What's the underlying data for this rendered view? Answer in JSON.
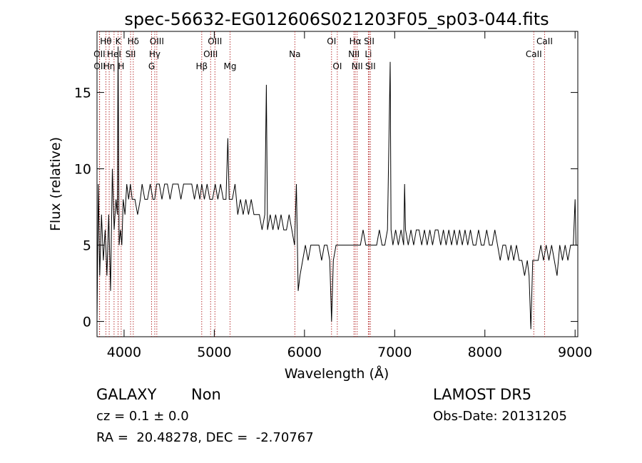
{
  "title": "spec-56632-EG012606S021203F05_sp03-044.fits",
  "footer": {
    "class_label": "GALAXY",
    "subclass_label": "Non",
    "cz_text": "cz = 0.1 ± 0.0",
    "coords_text": "RA =  20.48278, DEC =  -2.70767",
    "survey": "LAMOST DR5",
    "obs_date_text": "Obs-Date: 20131205"
  },
  "colors": {
    "axis": "#000000",
    "spectrum": "#000000",
    "line_marker": "#b22222"
  },
  "chart_data": {
    "type": "line",
    "title": "spec-56632-EG012606S021203F05_sp03-044.fits",
    "xlabel": "Wavelength (Å)",
    "ylabel": "Flux (relative)",
    "xlim": [
      3700,
      9030
    ],
    "ylim": [
      -1,
      19
    ],
    "xticks": [
      4000,
      5000,
      6000,
      7000,
      8000,
      9000
    ],
    "yticks": [
      0,
      5,
      10,
      15
    ],
    "grid": false,
    "legend": "none",
    "series": [
      {
        "points": [
          [
            3700,
            0
          ],
          [
            3715,
            9
          ],
          [
            3730,
            3
          ],
          [
            3750,
            7
          ],
          [
            3770,
            4
          ],
          [
            3790,
            6
          ],
          [
            3810,
            3
          ],
          [
            3830,
            7
          ],
          [
            3850,
            2
          ],
          [
            3870,
            10
          ],
          [
            3890,
            6
          ],
          [
            3910,
            8
          ],
          [
            3925,
            7
          ],
          [
            3933,
            18
          ],
          [
            3945,
            5
          ],
          [
            3960,
            6
          ],
          [
            3975,
            5
          ],
          [
            3990,
            8
          ],
          [
            4010,
            7
          ],
          [
            4030,
            9
          ],
          [
            4050,
            8
          ],
          [
            4070,
            9
          ],
          [
            4090,
            8
          ],
          [
            4101,
            8
          ],
          [
            4120,
            8
          ],
          [
            4150,
            7
          ],
          [
            4180,
            8
          ],
          [
            4200,
            9
          ],
          [
            4230,
            8
          ],
          [
            4260,
            8
          ],
          [
            4290,
            9
          ],
          [
            4320,
            8
          ],
          [
            4340,
            8
          ],
          [
            4360,
            9
          ],
          [
            4390,
            9
          ],
          [
            4420,
            8
          ],
          [
            4450,
            9
          ],
          [
            4480,
            9
          ],
          [
            4510,
            8
          ],
          [
            4540,
            9
          ],
          [
            4570,
            9
          ],
          [
            4600,
            9
          ],
          [
            4630,
            8
          ],
          [
            4660,
            9
          ],
          [
            4690,
            9
          ],
          [
            4720,
            9
          ],
          [
            4750,
            9
          ],
          [
            4780,
            8
          ],
          [
            4810,
            9
          ],
          [
            4840,
            8
          ],
          [
            4861,
            9
          ],
          [
            4890,
            8
          ],
          [
            4920,
            9
          ],
          [
            4950,
            8
          ],
          [
            4980,
            8
          ],
          [
            5010,
            9
          ],
          [
            5040,
            8
          ],
          [
            5070,
            9
          ],
          [
            5100,
            8
          ],
          [
            5130,
            8
          ],
          [
            5150,
            12
          ],
          [
            5165,
            8
          ],
          [
            5200,
            8
          ],
          [
            5230,
            9
          ],
          [
            5260,
            7
          ],
          [
            5290,
            8
          ],
          [
            5320,
            7
          ],
          [
            5350,
            8
          ],
          [
            5380,
            7
          ],
          [
            5410,
            8
          ],
          [
            5440,
            7
          ],
          [
            5470,
            7
          ],
          [
            5500,
            7
          ],
          [
            5530,
            6
          ],
          [
            5560,
            7
          ],
          [
            5577,
            15.5
          ],
          [
            5590,
            6
          ],
          [
            5620,
            7
          ],
          [
            5650,
            6
          ],
          [
            5680,
            7
          ],
          [
            5710,
            6
          ],
          [
            5740,
            7
          ],
          [
            5770,
            6
          ],
          [
            5800,
            6
          ],
          [
            5830,
            7
          ],
          [
            5860,
            6
          ],
          [
            5890,
            5
          ],
          [
            5910,
            9
          ],
          [
            5930,
            2
          ],
          [
            5950,
            3
          ],
          [
            5980,
            4
          ],
          [
            6010,
            5
          ],
          [
            6040,
            4
          ],
          [
            6070,
            5
          ],
          [
            6100,
            5
          ],
          [
            6130,
            5
          ],
          [
            6160,
            5
          ],
          [
            6190,
            4
          ],
          [
            6220,
            5
          ],
          [
            6250,
            5
          ],
          [
            6280,
            4
          ],
          [
            6300,
            0
          ],
          [
            6320,
            4
          ],
          [
            6350,
            5
          ],
          [
            6380,
            5
          ],
          [
            6410,
            5
          ],
          [
            6440,
            5
          ],
          [
            6470,
            5
          ],
          [
            6500,
            5
          ],
          [
            6530,
            5
          ],
          [
            6560,
            5
          ],
          [
            6590,
            5
          ],
          [
            6620,
            5
          ],
          [
            6650,
            6
          ],
          [
            6680,
            5
          ],
          [
            6710,
            5
          ],
          [
            6740,
            5
          ],
          [
            6770,
            5
          ],
          [
            6800,
            5
          ],
          [
            6830,
            6
          ],
          [
            6860,
            5
          ],
          [
            6890,
            5
          ],
          [
            6920,
            6
          ],
          [
            6950,
            17
          ],
          [
            6960,
            6
          ],
          [
            6980,
            5
          ],
          [
            7010,
            6
          ],
          [
            7040,
            5
          ],
          [
            7070,
            6
          ],
          [
            7100,
            5
          ],
          [
            7110,
            9
          ],
          [
            7120,
            6
          ],
          [
            7150,
            5
          ],
          [
            7180,
            6
          ],
          [
            7210,
            5
          ],
          [
            7240,
            6
          ],
          [
            7270,
            6
          ],
          [
            7300,
            5
          ],
          [
            7330,
            6
          ],
          [
            7360,
            5
          ],
          [
            7390,
            6
          ],
          [
            7420,
            5
          ],
          [
            7450,
            6
          ],
          [
            7480,
            6
          ],
          [
            7510,
            5
          ],
          [
            7540,
            6
          ],
          [
            7570,
            5
          ],
          [
            7600,
            6
          ],
          [
            7630,
            5
          ],
          [
            7660,
            6
          ],
          [
            7690,
            5
          ],
          [
            7720,
            6
          ],
          [
            7750,
            5
          ],
          [
            7780,
            6
          ],
          [
            7810,
            5
          ],
          [
            7840,
            6
          ],
          [
            7870,
            5
          ],
          [
            7900,
            5
          ],
          [
            7930,
            6
          ],
          [
            7960,
            5
          ],
          [
            7990,
            5
          ],
          [
            8020,
            6
          ],
          [
            8050,
            5
          ],
          [
            8080,
            5
          ],
          [
            8110,
            6
          ],
          [
            8140,
            5
          ],
          [
            8170,
            4
          ],
          [
            8200,
            5
          ],
          [
            8230,
            5
          ],
          [
            8260,
            4
          ],
          [
            8290,
            5
          ],
          [
            8320,
            4
          ],
          [
            8350,
            5
          ],
          [
            8380,
            4
          ],
          [
            8410,
            4
          ],
          [
            8440,
            3
          ],
          [
            8470,
            4
          ],
          [
            8490,
            3
          ],
          [
            8510,
            -0.5
          ],
          [
            8530,
            4
          ],
          [
            8560,
            4
          ],
          [
            8590,
            4
          ],
          [
            8620,
            5
          ],
          [
            8650,
            4
          ],
          [
            8680,
            5
          ],
          [
            8710,
            4
          ],
          [
            8740,
            5
          ],
          [
            8770,
            4
          ],
          [
            8800,
            3
          ],
          [
            8830,
            5
          ],
          [
            8860,
            4
          ],
          [
            8890,
            5
          ],
          [
            8920,
            4
          ],
          [
            8950,
            5
          ],
          [
            8980,
            5
          ],
          [
            9000,
            8
          ],
          [
            9010,
            5
          ],
          [
            9030,
            5
          ]
        ]
      }
    ],
    "line_markers": [
      {
        "label": "OII",
        "x": 3727,
        "row": 2
      },
      {
        "label": "OII",
        "x": 3729,
        "row": 3
      },
      {
        "label": "Hθ",
        "x": 3798,
        "row": 1
      },
      {
        "label": "Hη",
        "x": 3835,
        "row": 3
      },
      {
        "label": "HeI",
        "x": 3889,
        "row": 2
      },
      {
        "label": "K",
        "x": 3934,
        "row": 1
      },
      {
        "label": "H",
        "x": 3968,
        "row": 3
      },
      {
        "label": "Hδ",
        "x": 4102,
        "row": 1
      },
      {
        "label": "SII",
        "x": 4072,
        "row": 2
      },
      {
        "label": "OIII",
        "x": 4363,
        "row": 1
      },
      {
        "label": "Hγ",
        "x": 4340,
        "row": 2
      },
      {
        "label": "G",
        "x": 4305,
        "row": 3
      },
      {
        "label": "OIII",
        "x": 5007,
        "row": 1
      },
      {
        "label": "OIII",
        "x": 4959,
        "row": 2
      },
      {
        "label": "Hβ",
        "x": 4861,
        "row": 3
      },
      {
        "label": "Mg",
        "x": 5175,
        "row": 3
      },
      {
        "label": "Na",
        "x": 5893,
        "row": 2
      },
      {
        "label": "OI",
        "x": 6300,
        "row": 1
      },
      {
        "label": "OI",
        "x": 6364,
        "row": 3
      },
      {
        "label": "Hα",
        "x": 6563,
        "row": 1
      },
      {
        "label": "NII",
        "x": 6548,
        "row": 2
      },
      {
        "label": "NII",
        "x": 6584,
        "row": 3
      },
      {
        "label": "SII",
        "x": 6717,
        "row": 1
      },
      {
        "label": "Li",
        "x": 6708,
        "row": 2
      },
      {
        "label": "SII",
        "x": 6731,
        "row": 3
      },
      {
        "label": "CaII",
        "x": 8662,
        "row": 1
      },
      {
        "label": "CaII",
        "x": 8542,
        "row": 2
      }
    ],
    "redshift_display_offset": 0
  }
}
